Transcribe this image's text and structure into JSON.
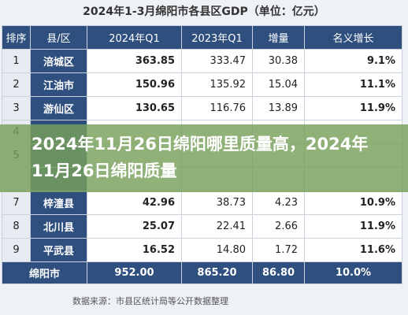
{
  "header": {
    "title": "2024年1-3月绵阳市各县区GDP（单位：亿元）"
  },
  "table": {
    "columns": [
      "排序",
      "县/区",
      "2024年Q1",
      "2023年Q1",
      "增量",
      "名义增长"
    ],
    "rows": [
      [
        "1",
        "涪城区",
        "363.85",
        "333.47",
        "30.38",
        "9.1%"
      ],
      [
        "2",
        "江油市",
        "150.96",
        "135.92",
        "15.04",
        "11.1%"
      ],
      [
        "3",
        "游仙区",
        "130.65",
        "116.76",
        "13.89",
        "11.9%"
      ],
      [
        "4"
      ],
      [
        "5"
      ],
      [],
      [
        "7",
        "梓潼县",
        "42.96",
        "38.73",
        "4.23",
        "10.9%"
      ],
      [
        "8",
        "北川县",
        "25.07",
        "22.41",
        "2.66",
        "11.9%"
      ],
      [
        "9",
        "平武县",
        "16.52",
        "14.80",
        "1.72",
        "11.6%"
      ]
    ],
    "total": [
      "绵阳市",
      "952.00",
      "865.20",
      "86.80",
      "10.0%"
    ]
  },
  "source": "数据来源：市县区统计局等公开数据整理",
  "banner": "2024年11月26日绵阳哪里质量高，2024年11月26日绵阳质量"
}
